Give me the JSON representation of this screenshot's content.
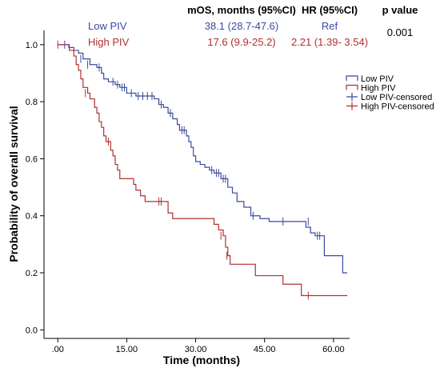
{
  "chart_data": {
    "type": "line",
    "subtype": "kaplan-meier",
    "xlabel": "Time (months)",
    "ylabel": "Probability of overall survival",
    "xlim": [
      -3,
      63.5
    ],
    "ylim": [
      -0.03,
      1.05
    ],
    "x_ticks": [
      0,
      15,
      30,
      45,
      60
    ],
    "x_tick_labels": [
      ".00",
      "15.00",
      "30.00",
      "45.00",
      "60.00"
    ],
    "y_ticks": [
      0,
      0.2,
      0.4,
      0.6,
      0.8,
      1.0
    ],
    "y_tick_labels": [
      "0.0",
      "0.2",
      "0.4",
      "0.6",
      "0.8",
      "1.0"
    ],
    "grid": false,
    "legend_position": "right",
    "legend": [
      {
        "label": "Low PIV",
        "color": "#3b4aa0",
        "symbol": "line"
      },
      {
        "label": "High PIV",
        "color": "#b03030",
        "symbol": "line"
      },
      {
        "label": "Low PIV-censored",
        "color": "#3b4aa0",
        "symbol": "cross"
      },
      {
        "label": "High PIV-censored",
        "color": "#b03030",
        "symbol": "cross"
      }
    ],
    "stats_table": {
      "headers": [
        "mOS, months (95%CI)",
        "HR (95%CI)",
        "p value"
      ],
      "rows": [
        {
          "group": "Low PIV",
          "mos": "38.1 (28.7-47.6)",
          "hr": "Ref",
          "color": "#3b4aa0"
        },
        {
          "group": "High PIV",
          "mos": "17.6 (9.9-25.2)",
          "hr": "2.21 (1.39- 3.54)",
          "color": "#b03030"
        }
      ],
      "p_value": "0.001"
    },
    "series": [
      {
        "name": "Low PIV",
        "color": "#3b4aa0",
        "steps": [
          [
            0,
            1.0
          ],
          [
            2.4,
            0.99
          ],
          [
            3.5,
            0.98
          ],
          [
            4.5,
            0.97
          ],
          [
            5.5,
            0.95
          ],
          [
            7.0,
            0.93
          ],
          [
            8.5,
            0.92
          ],
          [
            9.5,
            0.9
          ],
          [
            10.0,
            0.88
          ],
          [
            11.0,
            0.87
          ],
          [
            12.5,
            0.86
          ],
          [
            13.5,
            0.85
          ],
          [
            15.0,
            0.83
          ],
          [
            17.0,
            0.82
          ],
          [
            21.0,
            0.81
          ],
          [
            22.0,
            0.79
          ],
          [
            23.0,
            0.78
          ],
          [
            24.0,
            0.76
          ],
          [
            25.0,
            0.74
          ],
          [
            26.0,
            0.72
          ],
          [
            26.5,
            0.7
          ],
          [
            28.0,
            0.68
          ],
          [
            28.5,
            0.66
          ],
          [
            29.0,
            0.64
          ],
          [
            29.5,
            0.61
          ],
          [
            30.0,
            0.59
          ],
          [
            31.0,
            0.58
          ],
          [
            32.0,
            0.57
          ],
          [
            33.0,
            0.56
          ],
          [
            34.0,
            0.55
          ],
          [
            35.5,
            0.53
          ],
          [
            37.0,
            0.5
          ],
          [
            38.0,
            0.48
          ],
          [
            39.0,
            0.45
          ],
          [
            40.5,
            0.43
          ],
          [
            42.0,
            0.4
          ],
          [
            44.0,
            0.39
          ],
          [
            46.0,
            0.38
          ],
          [
            54.0,
            0.36
          ],
          [
            55.0,
            0.34
          ],
          [
            56.0,
            0.33
          ],
          [
            58.0,
            0.26
          ],
          [
            62.0,
            0.2
          ]
        ],
        "end_x": 63,
        "censored": [
          [
            1.5,
            1.0
          ],
          [
            5.0,
            0.95
          ],
          [
            6.5,
            0.93
          ],
          [
            9.0,
            0.92
          ],
          [
            12.0,
            0.87
          ],
          [
            13.0,
            0.86
          ],
          [
            14.0,
            0.85
          ],
          [
            14.5,
            0.85
          ],
          [
            16.0,
            0.83
          ],
          [
            17.5,
            0.82
          ],
          [
            18.5,
            0.82
          ],
          [
            19.5,
            0.82
          ],
          [
            20.5,
            0.82
          ],
          [
            22.5,
            0.79
          ],
          [
            24.5,
            0.76
          ],
          [
            27.0,
            0.7
          ],
          [
            27.5,
            0.7
          ],
          [
            33.5,
            0.56
          ],
          [
            34.5,
            0.55
          ],
          [
            35.0,
            0.55
          ],
          [
            36.0,
            0.53
          ],
          [
            36.5,
            0.53
          ],
          [
            42.5,
            0.4
          ],
          [
            49.0,
            0.38
          ],
          [
            54.5,
            0.38
          ],
          [
            56.5,
            0.33
          ],
          [
            57.0,
            0.33
          ]
        ]
      },
      {
        "name": "High PIV",
        "color": "#b03030",
        "steps": [
          [
            0,
            1.0
          ],
          [
            2.5,
            0.98
          ],
          [
            3.5,
            0.96
          ],
          [
            4.0,
            0.93
          ],
          [
            4.5,
            0.91
          ],
          [
            5.0,
            0.88
          ],
          [
            5.5,
            0.85
          ],
          [
            6.5,
            0.83
          ],
          [
            7.0,
            0.81
          ],
          [
            8.0,
            0.78
          ],
          [
            8.5,
            0.76
          ],
          [
            9.0,
            0.73
          ],
          [
            9.5,
            0.71
          ],
          [
            10.0,
            0.68
          ],
          [
            10.5,
            0.66
          ],
          [
            11.5,
            0.63
          ],
          [
            12.0,
            0.61
          ],
          [
            12.5,
            0.58
          ],
          [
            13.0,
            0.56
          ],
          [
            13.5,
            0.53
          ],
          [
            16.5,
            0.51
          ],
          [
            17.0,
            0.49
          ],
          [
            18.0,
            0.47
          ],
          [
            19.0,
            0.45
          ],
          [
            24.0,
            0.41
          ],
          [
            25.0,
            0.39
          ],
          [
            34.0,
            0.37
          ],
          [
            35.0,
            0.35
          ],
          [
            36.0,
            0.33
          ],
          [
            36.5,
            0.29
          ],
          [
            37.0,
            0.26
          ],
          [
            37.5,
            0.23
          ],
          [
            43.0,
            0.19
          ],
          [
            49.0,
            0.16
          ],
          [
            53.0,
            0.12
          ]
        ],
        "end_x": 63,
        "censored": [
          [
            0,
            1.0
          ],
          [
            6.0,
            0.83
          ],
          [
            11.0,
            0.66
          ],
          [
            22.0,
            0.45
          ],
          [
            22.5,
            0.45
          ],
          [
            35.5,
            0.33
          ],
          [
            36.8,
            0.26
          ],
          [
            54.5,
            0.12
          ]
        ]
      }
    ]
  }
}
